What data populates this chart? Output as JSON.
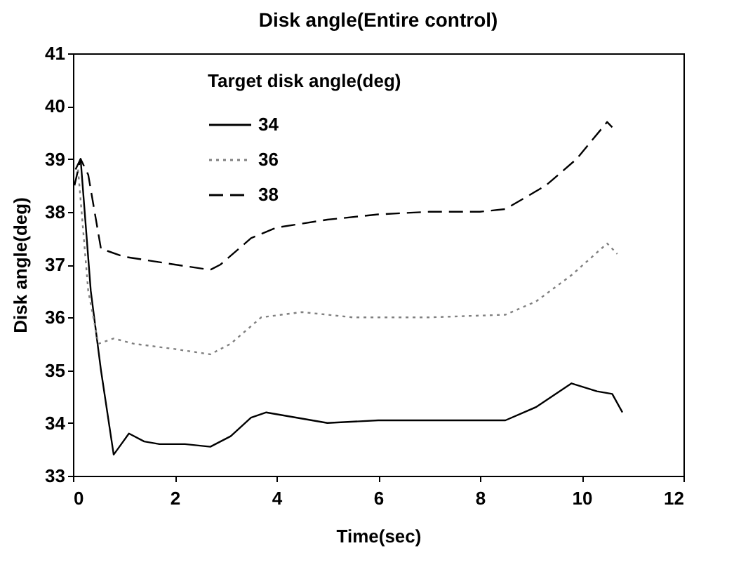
{
  "chart_data": {
    "type": "line",
    "title": "Disk angle(Entire control)",
    "xlabel": "Time(sec)",
    "ylabel": "Disk angle(deg)",
    "legend_title": "Target disk angle(deg)",
    "xlim": [
      0,
      12
    ],
    "xticks": [
      0,
      2,
      4,
      6,
      8,
      10,
      12
    ],
    "ylim": [
      33,
      41
    ],
    "yticks": [
      33,
      34,
      35,
      36,
      37,
      38,
      39,
      40,
      41
    ],
    "grid": false,
    "legend": "top left",
    "marker": "none",
    "series": [
      {
        "name": "34",
        "color": "#000000",
        "line_style": "solid",
        "x": [
          0.05,
          0.15,
          0.35,
          0.55,
          0.8,
          0.95,
          1.1,
          1.4,
          1.7,
          2.2,
          2.7,
          3.1,
          3.5,
          3.8,
          4.4,
          5.0,
          6.0,
          7.0,
          8.5,
          9.1,
          9.8,
          10.3,
          10.6,
          10.8
        ],
        "values": [
          38.8,
          39.0,
          36.5,
          35.0,
          33.4,
          33.6,
          33.8,
          33.65,
          33.6,
          33.6,
          33.55,
          33.75,
          34.1,
          34.2,
          34.1,
          34.0,
          34.05,
          34.05,
          34.05,
          34.3,
          34.75,
          34.6,
          34.55,
          34.2
        ]
      },
      {
        "name": "36",
        "color": "#808080",
        "line_style": "dotted",
        "x": [
          0.1,
          0.3,
          0.5,
          0.8,
          1.2,
          2.0,
          2.7,
          3.1,
          3.7,
          4.5,
          5.5,
          7.0,
          8.5,
          9.1,
          9.8,
          10.5,
          10.7
        ],
        "values": [
          38.8,
          36.5,
          35.5,
          35.6,
          35.5,
          35.4,
          35.3,
          35.5,
          36.0,
          36.1,
          36.0,
          36.0,
          36.05,
          36.3,
          36.8,
          37.4,
          37.2
        ]
      },
      {
        "name": "38",
        "color": "#000000",
        "line_style": "dashed",
        "x": [
          0.03,
          0.15,
          0.3,
          0.55,
          1.0,
          2.0,
          2.7,
          2.9,
          3.5,
          4.0,
          5.0,
          6.0,
          7.0,
          8.0,
          8.5,
          9.3,
          9.9,
          10.5,
          10.6
        ],
        "values": [
          38.5,
          39.0,
          38.7,
          37.3,
          37.15,
          37.0,
          36.9,
          37.0,
          37.5,
          37.7,
          37.85,
          37.95,
          38.0,
          38.0,
          38.05,
          38.5,
          39.0,
          39.7,
          39.6
        ]
      }
    ]
  }
}
